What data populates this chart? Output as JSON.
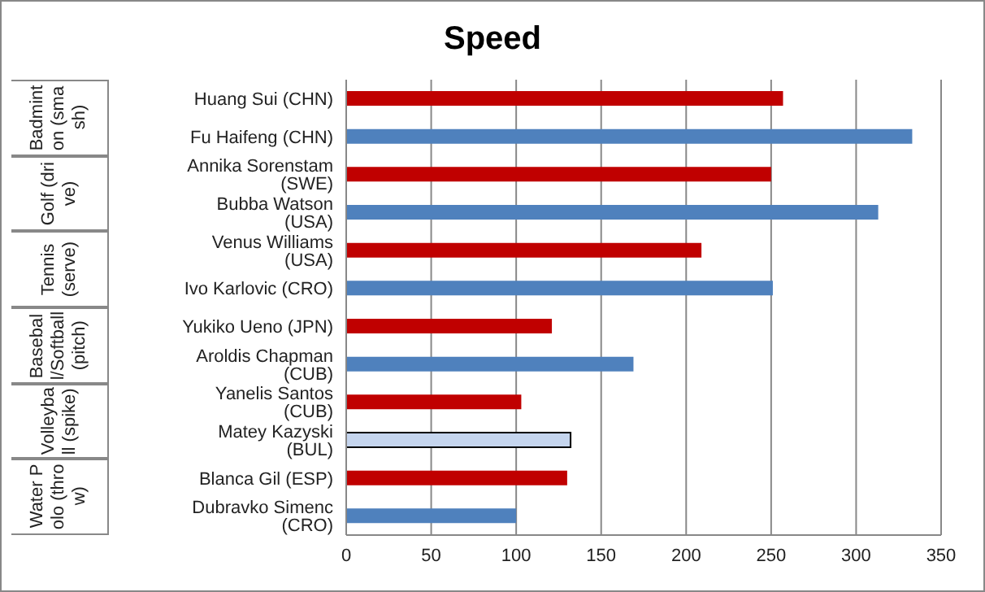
{
  "chart_data": {
    "type": "bar",
    "orientation": "horizontal",
    "title": "Speed",
    "categories": [
      "Huang Sui (CHN)",
      "Fu Haifeng (CHN)",
      "Annika Sorenstam (SWE)",
      "Bubba Watson (USA)",
      "Venus Williams (USA)",
      "Ivo Karlovic (CRO)",
      "Yukiko Ueno (JPN)",
      "Aroldis Chapman (CUB)",
      "Yanelis Santos (CUB)",
      "Matey Kazyski (BUL)",
      "Blanca Gil (ESP)",
      "Dubravko Simenc (CRO)"
    ],
    "values": [
      257,
      333,
      250,
      313,
      209,
      251,
      121,
      169,
      103,
      132,
      130,
      100
    ],
    "colors": [
      "#c00000",
      "#4f81bd",
      "#c00000",
      "#4f81bd",
      "#c00000",
      "#4f81bd",
      "#c00000",
      "#4f81bd",
      "#c00000",
      "#c5d5ee",
      "#c00000",
      "#4f81bd"
    ],
    "xlim": [
      0,
      350
    ],
    "xticks": [
      0,
      50,
      100,
      150,
      200,
      250,
      300,
      350
    ],
    "grid": "x",
    "legend": false,
    "annotations": [
      "Badminton (smash)",
      "Golf (drive)",
      "Tennis (serve)",
      "Baseball/Softball (pitch)",
      "Volleyball (spike)",
      "Water Polo (throw)"
    ]
  }
}
